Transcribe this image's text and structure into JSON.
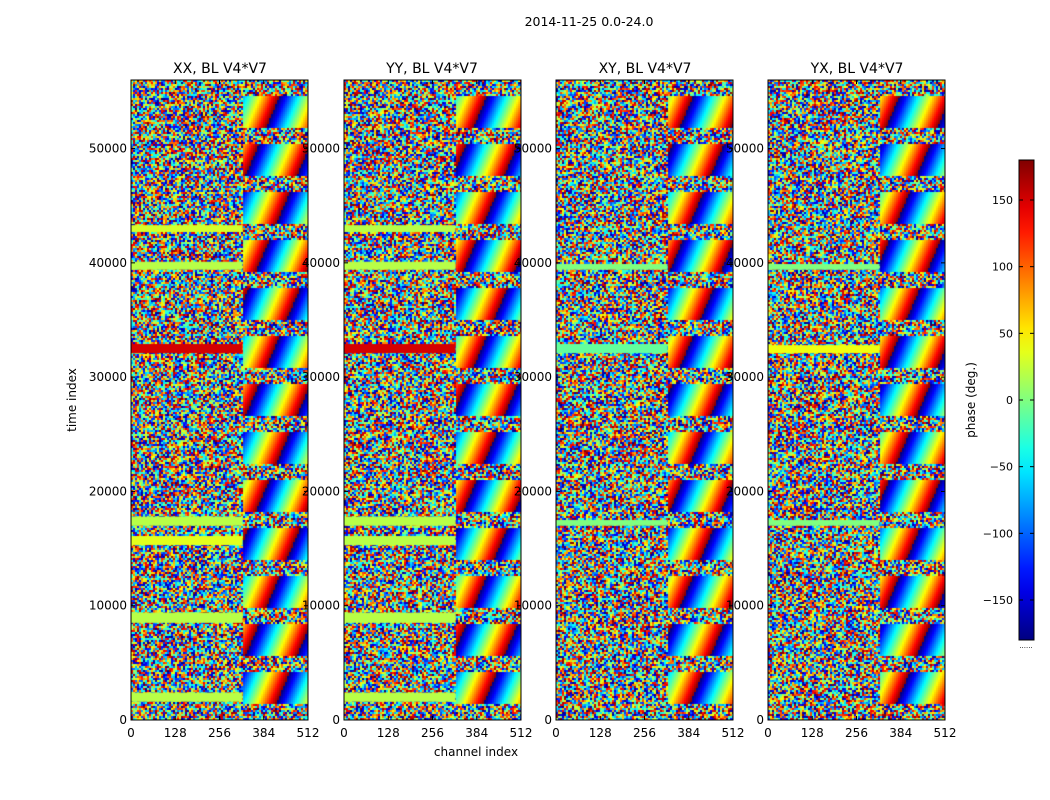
{
  "chart_data": {
    "type": "heatmap",
    "suptitle": "2014-11-25 0.0-24.0",
    "xlabel": "channel index",
    "ylabel": "time index",
    "xlim": [
      0,
      512
    ],
    "ylim": [
      0,
      56000
    ],
    "x_ticks": [
      0,
      128,
      256,
      384,
      512
    ],
    "y_ticks": [
      0,
      10000,
      20000,
      30000,
      40000,
      50000
    ],
    "colorbar": {
      "label": "phase (deg.)",
      "range": [
        -180,
        180
      ],
      "ticks": [
        150,
        100,
        50,
        0,
        -50,
        -100,
        -150
      ],
      "colormap": "jet",
      "footnote": "......"
    },
    "panels": [
      {
        "title": "XX, BL V4*V7",
        "flat_bands": [
          {
            "t0": 1600,
            "t1": 2400,
            "value": 20
          },
          {
            "t0": 8500,
            "t1": 9400,
            "value": 20
          },
          {
            "t0": 15300,
            "t1": 16100,
            "value": 35
          },
          {
            "t0": 17000,
            "t1": 17800,
            "value": 20
          },
          {
            "t0": 32100,
            "t1": 32900,
            "value": 150
          },
          {
            "t0": 39400,
            "t1": 40100,
            "value": 20
          },
          {
            "t0": 42700,
            "t1": 43300,
            "value": 30
          }
        ]
      },
      {
        "title": "YY, BL V4*V7",
        "flat_bands": [
          {
            "t0": 1600,
            "t1": 2400,
            "value": 20
          },
          {
            "t0": 8500,
            "t1": 9400,
            "value": 20
          },
          {
            "t0": 15300,
            "t1": 16100,
            "value": 20
          },
          {
            "t0": 17000,
            "t1": 17800,
            "value": 20
          },
          {
            "t0": 32100,
            "t1": 32900,
            "value": 150
          },
          {
            "t0": 39400,
            "t1": 40100,
            "value": 20
          },
          {
            "t0": 42700,
            "t1": 43300,
            "value": 20
          }
        ]
      },
      {
        "title": "XY, BL V4*V7",
        "flat_bands": [
          {
            "t0": 32100,
            "t1": 32900,
            "value": -10
          },
          {
            "t0": 17000,
            "t1": 17500,
            "value": 0
          },
          {
            "t0": 39400,
            "t1": 39900,
            "value": 0
          }
        ]
      },
      {
        "title": "YX, BL V4*V7",
        "flat_bands": [
          {
            "t0": 32100,
            "t1": 32800,
            "value": 40
          },
          {
            "t0": 17000,
            "t1": 17500,
            "value": 0
          },
          {
            "t0": 39400,
            "t1": 39900,
            "value": 0
          }
        ]
      }
    ]
  }
}
